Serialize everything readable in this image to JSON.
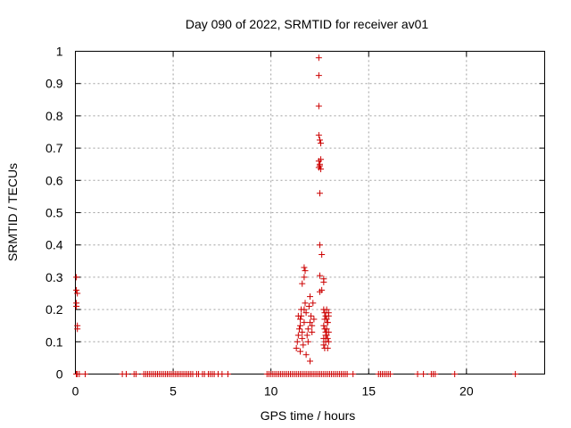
{
  "chart_data": {
    "type": "scatter",
    "title": "Day 090 of 2022, SRMTID for receiver av01",
    "xlabel": "GPS time / hours",
    "ylabel": "SRMTID / TECUs",
    "xlim": [
      0,
      24
    ],
    "ylim": [
      0,
      1
    ],
    "xticks": [
      0,
      5,
      10,
      15,
      20
    ],
    "yticks": [
      0,
      0.1,
      0.2,
      0.3,
      0.4,
      0.5,
      0.6,
      0.7,
      0.8,
      0.9,
      1
    ],
    "ytick_labels": [
      "0",
      "0.1",
      "0.2",
      "0.3",
      "0.4",
      "0.5",
      "0.6",
      "0.7",
      "0.8",
      "0.9",
      "1"
    ],
    "grid": true,
    "marker": "+",
    "color": "#cc0000",
    "points": [
      [
        0.05,
        0.0
      ],
      [
        0.1,
        0.0
      ],
      [
        0.2,
        0.0
      ],
      [
        0.5,
        0.0
      ],
      [
        0.05,
        0.3
      ],
      [
        0.05,
        0.26
      ],
      [
        0.1,
        0.25
      ],
      [
        0.05,
        0.22
      ],
      [
        0.05,
        0.21
      ],
      [
        0.1,
        0.15
      ],
      [
        0.1,
        0.14
      ],
      [
        2.4,
        0.0
      ],
      [
        2.6,
        0.0
      ],
      [
        3.0,
        0.0
      ],
      [
        3.1,
        0.0
      ],
      [
        3.5,
        0.0
      ],
      [
        3.6,
        0.0
      ],
      [
        3.7,
        0.0
      ],
      [
        3.8,
        0.0
      ],
      [
        3.9,
        0.0
      ],
      [
        4.0,
        0.0
      ],
      [
        4.1,
        0.0
      ],
      [
        4.2,
        0.0
      ],
      [
        4.3,
        0.0
      ],
      [
        4.4,
        0.0
      ],
      [
        4.5,
        0.0
      ],
      [
        4.6,
        0.0
      ],
      [
        4.7,
        0.0
      ],
      [
        4.8,
        0.0
      ],
      [
        4.9,
        0.0
      ],
      [
        5.0,
        0.0
      ],
      [
        5.1,
        0.0
      ],
      [
        5.2,
        0.0
      ],
      [
        5.3,
        0.0
      ],
      [
        5.4,
        0.0
      ],
      [
        5.5,
        0.0
      ],
      [
        5.6,
        0.0
      ],
      [
        5.7,
        0.0
      ],
      [
        5.8,
        0.0
      ],
      [
        5.9,
        0.0
      ],
      [
        6.0,
        0.0
      ],
      [
        6.2,
        0.0
      ],
      [
        6.3,
        0.0
      ],
      [
        6.5,
        0.0
      ],
      [
        6.6,
        0.0
      ],
      [
        6.8,
        0.0
      ],
      [
        6.9,
        0.0
      ],
      [
        7.0,
        0.0
      ],
      [
        7.1,
        0.0
      ],
      [
        7.3,
        0.0
      ],
      [
        7.5,
        0.0
      ],
      [
        7.8,
        0.0
      ],
      [
        9.8,
        0.0
      ],
      [
        9.9,
        0.0
      ],
      [
        10.0,
        0.0
      ],
      [
        10.1,
        0.0
      ],
      [
        10.2,
        0.0
      ],
      [
        10.3,
        0.0
      ],
      [
        10.4,
        0.0
      ],
      [
        10.5,
        0.0
      ],
      [
        10.6,
        0.0
      ],
      [
        10.7,
        0.0
      ],
      [
        10.8,
        0.0
      ],
      [
        10.9,
        0.0
      ],
      [
        11.0,
        0.0
      ],
      [
        11.1,
        0.0
      ],
      [
        11.2,
        0.0
      ],
      [
        11.3,
        0.0
      ],
      [
        11.4,
        0.0
      ],
      [
        11.5,
        0.0
      ],
      [
        11.6,
        0.0
      ],
      [
        11.7,
        0.0
      ],
      [
        11.8,
        0.0
      ],
      [
        11.9,
        0.0
      ],
      [
        12.0,
        0.0
      ],
      [
        12.1,
        0.0
      ],
      [
        12.2,
        0.0
      ],
      [
        12.3,
        0.0
      ],
      [
        12.4,
        0.0
      ],
      [
        12.5,
        0.0
      ],
      [
        12.6,
        0.0
      ],
      [
        12.7,
        0.0
      ],
      [
        12.8,
        0.0
      ],
      [
        12.9,
        0.0
      ],
      [
        13.0,
        0.0
      ],
      [
        13.1,
        0.0
      ],
      [
        13.2,
        0.0
      ],
      [
        13.3,
        0.0
      ],
      [
        13.4,
        0.0
      ],
      [
        13.5,
        0.0
      ],
      [
        13.6,
        0.0
      ],
      [
        13.7,
        0.0
      ],
      [
        13.8,
        0.0
      ],
      [
        13.9,
        0.0
      ],
      [
        14.2,
        0.0
      ],
      [
        15.5,
        0.0
      ],
      [
        15.6,
        0.0
      ],
      [
        15.7,
        0.0
      ],
      [
        15.8,
        0.0
      ],
      [
        15.9,
        0.0
      ],
      [
        16.0,
        0.0
      ],
      [
        16.1,
        0.0
      ],
      [
        17.5,
        0.0
      ],
      [
        17.8,
        0.0
      ],
      [
        18.2,
        0.0
      ],
      [
        18.3,
        0.0
      ],
      [
        18.4,
        0.0
      ],
      [
        19.4,
        0.0
      ],
      [
        22.5,
        0.0
      ],
      [
        11.3,
        0.08
      ],
      [
        11.35,
        0.1
      ],
      [
        11.4,
        0.12
      ],
      [
        11.45,
        0.14
      ],
      [
        11.5,
        0.15
      ],
      [
        11.5,
        0.17
      ],
      [
        11.55,
        0.18
      ],
      [
        11.6,
        0.13
      ],
      [
        11.6,
        0.11
      ],
      [
        11.65,
        0.09
      ],
      [
        11.7,
        0.16
      ],
      [
        11.7,
        0.2
      ],
      [
        11.75,
        0.22
      ],
      [
        11.8,
        0.19
      ],
      [
        11.85,
        0.12
      ],
      [
        11.9,
        0.1
      ],
      [
        11.95,
        0.21
      ],
      [
        12.0,
        0.24
      ],
      [
        12.0,
        0.04
      ],
      [
        12.05,
        0.18
      ],
      [
        12.1,
        0.15
      ],
      [
        12.1,
        0.13
      ],
      [
        12.15,
        0.22
      ],
      [
        12.2,
        0.17
      ],
      [
        11.4,
        0.18
      ],
      [
        11.5,
        0.07
      ],
      [
        11.8,
        0.06
      ],
      [
        11.9,
        0.14
      ],
      [
        12.0,
        0.16
      ],
      [
        11.6,
        0.28
      ],
      [
        11.7,
        0.33
      ],
      [
        11.75,
        0.32
      ],
      [
        11.7,
        0.3
      ],
      [
        11.55,
        0.2
      ],
      [
        12.45,
        0.98
      ],
      [
        12.45,
        0.925
      ],
      [
        12.45,
        0.83
      ],
      [
        12.45,
        0.74
      ],
      [
        12.5,
        0.725
      ],
      [
        12.55,
        0.715
      ],
      [
        12.45,
        0.66
      ],
      [
        12.5,
        0.65
      ],
      [
        12.55,
        0.665
      ],
      [
        12.45,
        0.64
      ],
      [
        12.5,
        0.645
      ],
      [
        12.55,
        0.635
      ],
      [
        12.5,
        0.56
      ],
      [
        12.5,
        0.4
      ],
      [
        12.6,
        0.37
      ],
      [
        12.5,
        0.305
      ],
      [
        12.7,
        0.295
      ],
      [
        12.7,
        0.285
      ],
      [
        12.6,
        0.26
      ],
      [
        12.5,
        0.255
      ],
      [
        12.7,
        0.2
      ],
      [
        12.75,
        0.19
      ],
      [
        12.8,
        0.18
      ],
      [
        12.85,
        0.17
      ],
      [
        12.9,
        0.16
      ],
      [
        12.95,
        0.19
      ],
      [
        12.7,
        0.15
      ],
      [
        12.75,
        0.14
      ],
      [
        12.8,
        0.13
      ],
      [
        12.85,
        0.12
      ],
      [
        12.9,
        0.11
      ],
      [
        12.95,
        0.1
      ],
      [
        12.7,
        0.09
      ],
      [
        12.75,
        0.08
      ],
      [
        12.8,
        0.12
      ],
      [
        12.85,
        0.14
      ],
      [
        12.9,
        0.16
      ],
      [
        12.95,
        0.18
      ],
      [
        12.7,
        0.11
      ],
      [
        12.8,
        0.1
      ],
      [
        12.9,
        0.08
      ],
      [
        12.75,
        0.17
      ],
      [
        12.85,
        0.2
      ],
      [
        12.95,
        0.13
      ]
    ]
  }
}
